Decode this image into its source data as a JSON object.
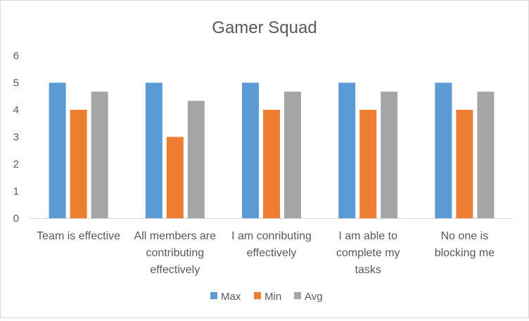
{
  "chart_data": {
    "type": "bar",
    "title": "Gamer Squad",
    "categories": [
      [
        "Team is effective"
      ],
      [
        "All members are",
        "contributing",
        "effectively"
      ],
      [
        "I am conributing",
        "effectively"
      ],
      [
        "I am able to",
        "complete my",
        "tasks"
      ],
      [
        "No one is",
        "blocking me"
      ]
    ],
    "series": [
      {
        "name": "Max",
        "color": "#5b9bd5",
        "values": [
          5,
          5,
          5,
          5,
          5
        ]
      },
      {
        "name": "Min",
        "color": "#ed7d31",
        "values": [
          4,
          3,
          4,
          4,
          4
        ]
      },
      {
        "name": "Avg",
        "color": "#a5a5a5",
        "values": [
          4.67,
          4.33,
          4.67,
          4.67,
          4.67
        ]
      }
    ],
    "yticks": [
      "0",
      "1",
      "2",
      "3",
      "4",
      "5",
      "6"
    ],
    "ylim": [
      0,
      6
    ],
    "xlabel": "",
    "ylabel": "",
    "grid": false,
    "legend_position": "bottom"
  }
}
